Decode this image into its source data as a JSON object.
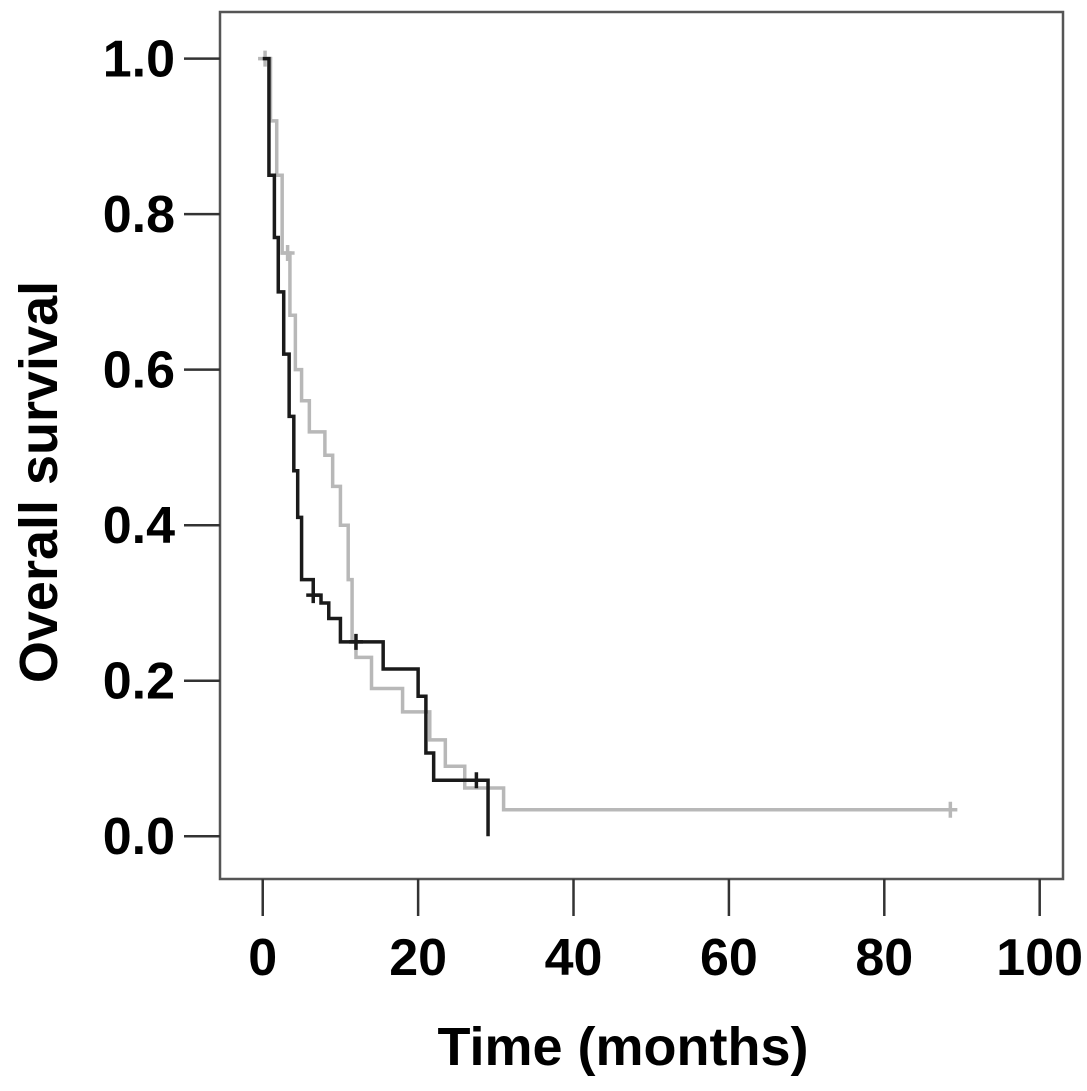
{
  "chart_data": {
    "type": "line",
    "subtype": "kaplan-meier-step",
    "title": "",
    "xlabel": "Time (months)",
    "ylabel": "Overall survival",
    "xlim": [
      -5.5,
      103
    ],
    "ylim": [
      -0.055,
      1.06
    ],
    "xticks": [
      0,
      20,
      40,
      60,
      80,
      100
    ],
    "yticks": [
      0.0,
      0.2,
      0.4,
      0.6,
      0.8,
      1.0
    ],
    "grid": false,
    "legend": "none",
    "series": [
      {
        "color": "#1a1a1a",
        "x": [
          0,
          0.8,
          1.5,
          2.0,
          2.7,
          3.4,
          4.0,
          4.5,
          5.0,
          6.5,
          7.5,
          8.5,
          10.0,
          15.5,
          20.0,
          21.0,
          22.0,
          27.5,
          29.0
        ],
        "y": [
          1.0,
          0.85,
          0.77,
          0.7,
          0.62,
          0.54,
          0.47,
          0.41,
          0.33,
          0.31,
          0.3,
          0.28,
          0.25,
          0.215,
          0.18,
          0.107,
          0.072,
          0.072,
          0.0
        ],
        "censored": [
          [
            6.5,
            0.31
          ],
          [
            12.0,
            0.25
          ],
          [
            27.5,
            0.072
          ]
        ]
      },
      {
        "color": "#b8b8b8",
        "x": [
          0,
          1.0,
          1.8,
          2.5,
          3.5,
          4.2,
          5.0,
          6.0,
          8.0,
          9.0,
          10.0,
          11.0,
          11.5,
          12.0,
          14.0,
          18.0,
          21.5,
          23.5,
          26.0,
          31.0,
          88.5
        ],
        "y": [
          1.0,
          0.92,
          0.85,
          0.75,
          0.67,
          0.6,
          0.56,
          0.52,
          0.49,
          0.45,
          0.4,
          0.33,
          0.25,
          0.23,
          0.19,
          0.16,
          0.124,
          0.09,
          0.062,
          0.034,
          0.034
        ],
        "censored": [
          [
            0.3,
            1.0
          ],
          [
            3.2,
            0.75
          ],
          [
            88.5,
            0.034
          ]
        ]
      }
    ]
  }
}
